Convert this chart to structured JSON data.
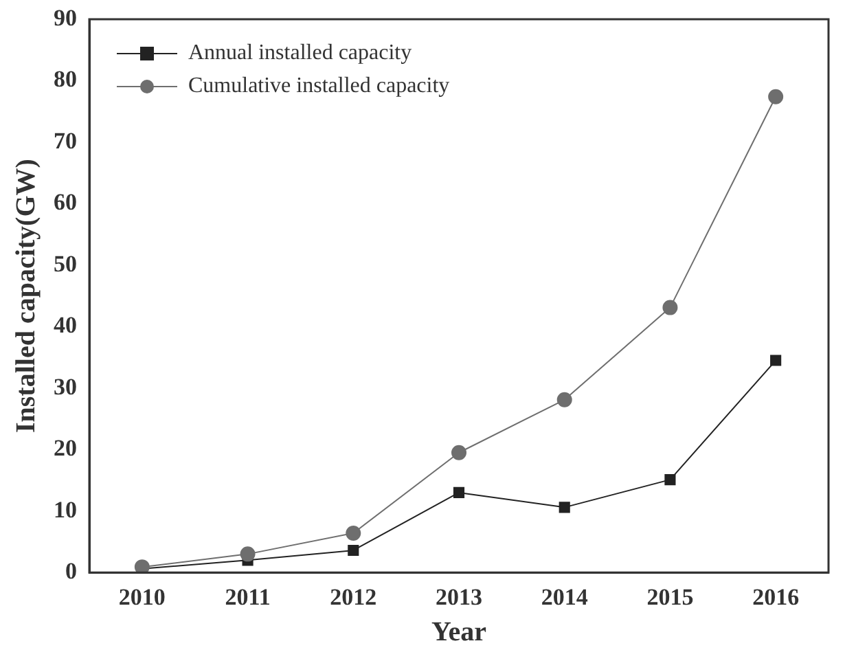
{
  "chart_data": {
    "type": "line",
    "xlabel": "Year",
    "ylabel": "Installed capacity(GW)",
    "x": [
      2010,
      2011,
      2012,
      2013,
      2014,
      2015,
      2016
    ],
    "series": [
      {
        "name": "Annual installed capacity",
        "color": "#222222",
        "marker": "square",
        "values": [
          0.6,
          2.0,
          3.6,
          13.0,
          10.6,
          15.1,
          34.5
        ]
      },
      {
        "name": "Cumulative installed capacity",
        "color": "#6e6e6e",
        "marker": "circle",
        "values": [
          0.9,
          3.0,
          6.4,
          19.5,
          28.1,
          43.1,
          77.4
        ]
      }
    ],
    "xlim": [
      2009.5,
      2016.5
    ],
    "xticks": [
      2010,
      2011,
      2012,
      2013,
      2014,
      2015,
      2016
    ],
    "ylim": [
      0,
      90
    ],
    "yticks": [
      0,
      10,
      20,
      30,
      40,
      50,
      60,
      70,
      80,
      90
    ],
    "grid": false,
    "legend": "top left",
    "line_style": "solid"
  }
}
